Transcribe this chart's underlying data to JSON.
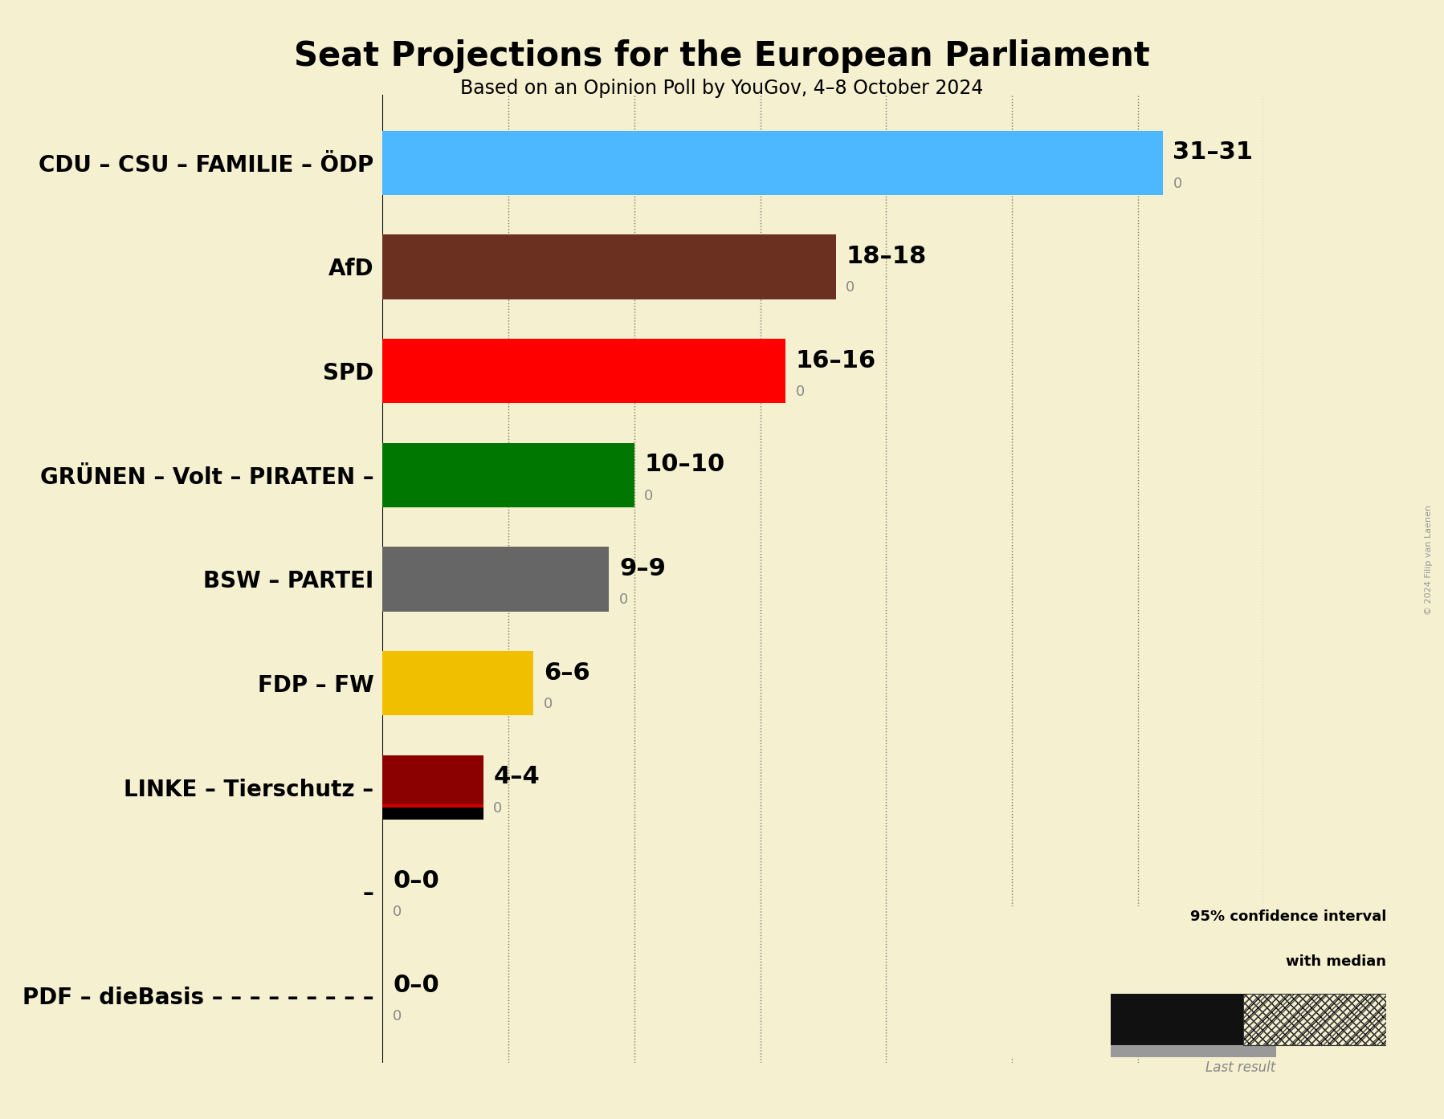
{
  "title": "Seat Projections for the European Parliament",
  "subtitle": "Based on an Opinion Poll by YouGov, 4–8 October 2024",
  "copyright": "© 2024 Filip van Laenen",
  "background_color": "#f5f0d0",
  "parties": [
    "CDU – CSU – FAMILIE – ÖDP",
    "AfD",
    "SPD",
    "GRÜNEN – Volt – PIRATEN –",
    "BSW – PARTEI",
    "FDP – FW",
    "LINKE – Tierschutz –",
    "–",
    "PDF – dieBasis – – – – – – – – –"
  ],
  "values": [
    31,
    18,
    16,
    10,
    9,
    6,
    4,
    0,
    0
  ],
  "last_results": [
    0,
    0,
    0,
    0,
    0,
    0,
    0,
    0,
    0
  ],
  "bar_colors": [
    "#4db8ff",
    "#6b3020",
    "#ff0000",
    "#007700",
    "#666666",
    "#f0c000",
    "#8b0000",
    null,
    null
  ],
  "label_text": [
    "31–31",
    "18–18",
    "16–16",
    "10–10",
    "9–9",
    "6–6",
    "4–4",
    "0–0",
    "0–0"
  ],
  "xlim": [
    0,
    35
  ],
  "xticks": [
    0,
    5,
    10,
    15,
    20,
    25,
    30,
    35
  ],
  "title_fontsize": 30,
  "subtitle_fontsize": 17,
  "label_fontsize": 22,
  "party_fontsize": 20,
  "zero_label_fontsize": 13,
  "bar_height": 0.62
}
